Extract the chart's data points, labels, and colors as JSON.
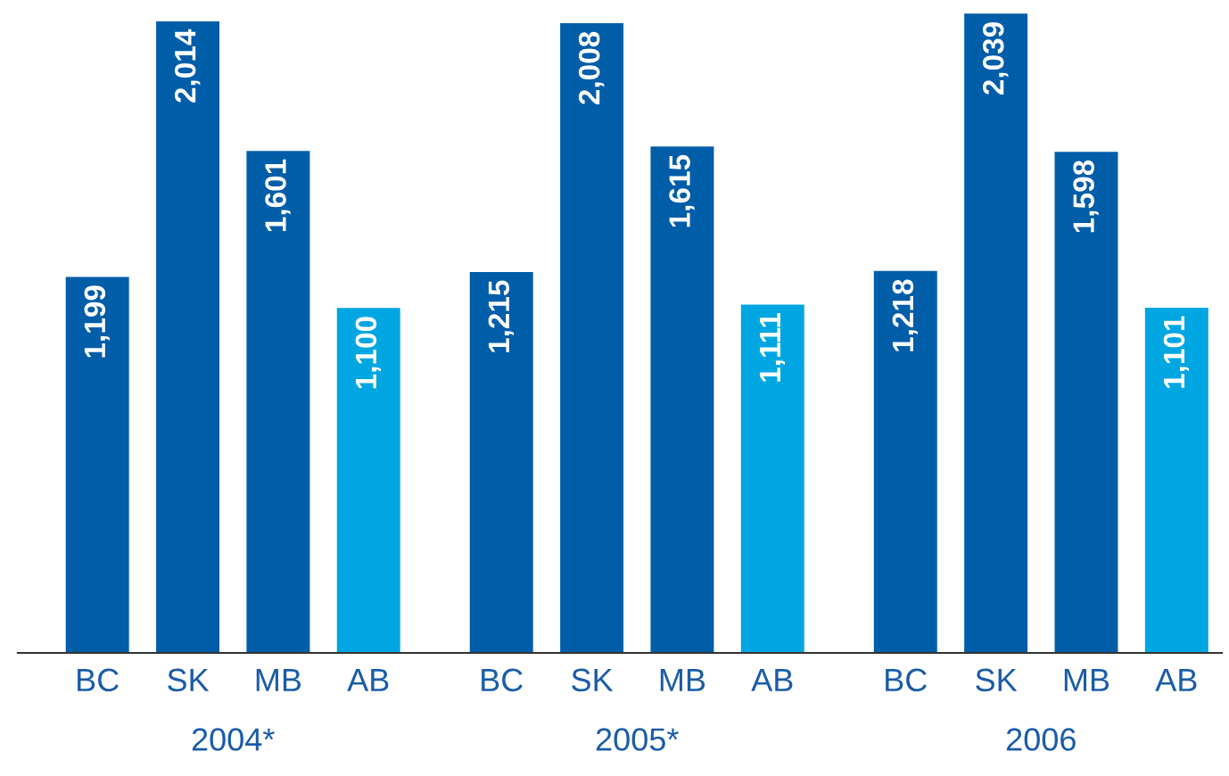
{
  "chart_data": {
    "type": "bar",
    "categories": [
      "BC",
      "SK",
      "MB",
      "AB",
      "BC",
      "SK",
      "MB",
      "AB",
      "BC",
      "SK",
      "MB",
      "AB"
    ],
    "values": [
      1199,
      2014,
      1601,
      1100,
      1215,
      2008,
      1615,
      1111,
      1218,
      2039,
      1598,
      1101
    ],
    "colors": [
      "#005da8",
      "#005da8",
      "#005da8",
      "#00a6e2",
      "#005da8",
      "#005da8",
      "#005da8",
      "#00a6e2",
      "#005da8",
      "#005da8",
      "#005da8",
      "#00a6e2"
    ],
    "value_labels": [
      "1,199",
      "2,014",
      "1,601",
      "1,100",
      "1,215",
      "2,008",
      "1,615",
      "1,111",
      "1,218",
      "2,039",
      "1,598",
      "1,101"
    ],
    "annotations": [
      "2004*",
      "2005*",
      "2006"
    ]
  }
}
